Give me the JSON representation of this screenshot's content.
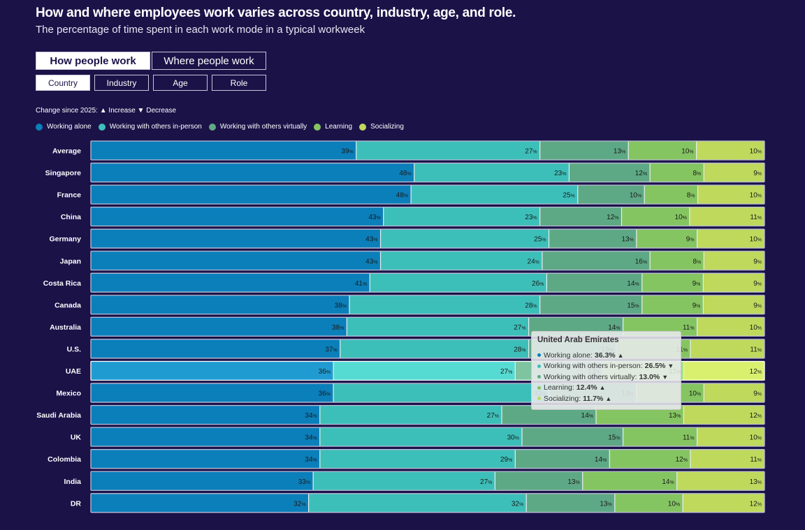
{
  "header": {
    "title": "How and where employees work varies across country, industry, age, and role.",
    "subtitle": "The percentage of time spent in each work mode in a typical workweek"
  },
  "tabs": [
    {
      "label": "How people work",
      "active": true
    },
    {
      "label": "Where people work",
      "active": false
    }
  ],
  "subtabs": [
    {
      "label": "Country",
      "active": true
    },
    {
      "label": "Industry",
      "active": false
    },
    {
      "label": "Age",
      "active": false
    },
    {
      "label": "Role",
      "active": false
    }
  ],
  "change_note": "Change since 2025: ▲ Increase ▼ Decrease",
  "tooltip": {
    "title": "United Arab Emirates",
    "rows": [
      {
        "label": "Working alone:",
        "value": "36.3%",
        "arrow": "▲",
        "color": "#0b7fba"
      },
      {
        "label": "Working with others in-person:",
        "value": "26.5%",
        "arrow": "▼",
        "color": "#3dbfb9"
      },
      {
        "label": "Working with others virtually:",
        "value": "13.0%",
        "arrow": "▼",
        "color": "#5ea985"
      },
      {
        "label": "Learning:",
        "value": "12.4%",
        "arrow": "▲",
        "color": "#85c561"
      },
      {
        "label": "Socializing:",
        "value": "11.7%",
        "arrow": "▲",
        "color": "#bfd95c"
      }
    ]
  },
  "chart_data": {
    "type": "bar",
    "orientation": "horizontal",
    "stacked": true,
    "normalized": true,
    "title": "How and where employees work varies across country, industry, age, and role.",
    "subtitle": "The percentage of time spent in each work mode in a typical workweek",
    "xlabel": "",
    "ylabel": "",
    "xlim": [
      0,
      100
    ],
    "grid": false,
    "legend_position": "top-left",
    "value_suffix": "%",
    "highlighted_category": "UAE",
    "categories": [
      "Average",
      "Singapore",
      "France",
      "China",
      "Germany",
      "Japan",
      "Costa Rica",
      "Canada",
      "Australia",
      "U.S.",
      "UAE",
      "Mexico",
      "Saudi Arabia",
      "UK",
      "Colombia",
      "India",
      "DR"
    ],
    "series": [
      {
        "name": "Working alone",
        "color": "#0b7fba",
        "highlight_color": "#209bd1",
        "values": [
          39,
          48,
          48,
          43,
          43,
          43,
          41,
          38,
          38,
          37,
          36,
          36,
          34,
          34,
          34,
          33,
          32
        ]
      },
      {
        "name": "Working with others in-person",
        "color": "#3dbfb9",
        "highlight_color": "#56dbd3",
        "values": [
          27,
          23,
          25,
          23,
          25,
          24,
          26,
          28,
          27,
          28,
          27,
          32,
          27,
          30,
          29,
          27,
          32
        ]
      },
      {
        "name": "Working with others virtually",
        "color": "#5ea985",
        "highlight_color": "#7ec4a0",
        "values": [
          13,
          12,
          10,
          12,
          13,
          16,
          14,
          15,
          14,
          13,
          13,
          13,
          14,
          15,
          14,
          13,
          13
        ]
      },
      {
        "name": "Learning",
        "color": "#85c561",
        "highlight_color": "#a0e07c",
        "values": [
          10,
          8,
          8,
          10,
          9,
          8,
          9,
          9,
          11,
          11,
          12,
          10,
          13,
          11,
          12,
          14,
          10
        ]
      },
      {
        "name": "Socializing",
        "color": "#bfd95c",
        "highlight_color": "#d9f06e",
        "values": [
          10,
          9,
          10,
          11,
          10,
          9,
          9,
          9,
          10,
          11,
          12,
          9,
          12,
          10,
          11,
          13,
          12
        ]
      }
    ]
  }
}
